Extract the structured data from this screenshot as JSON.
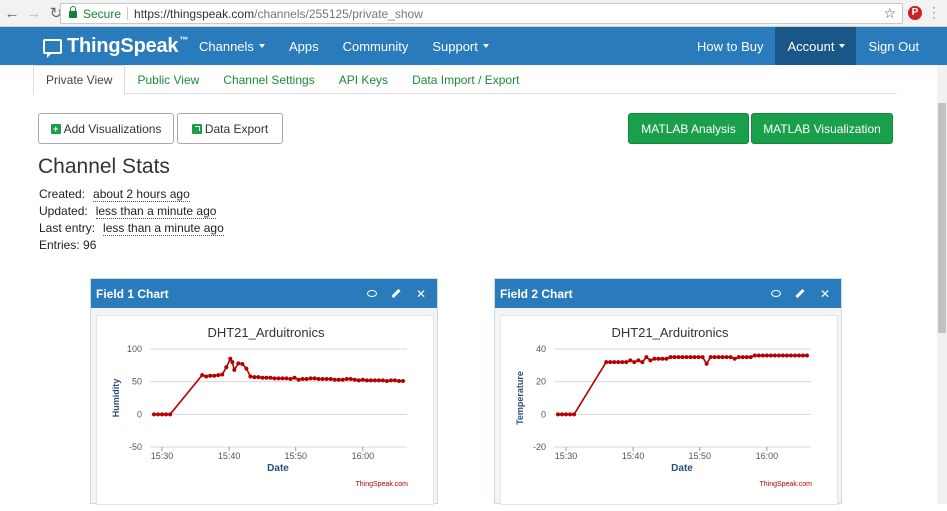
{
  "browser": {
    "secure_label": "Secure",
    "url_host": "https://thingspeak.com",
    "url_path": "/channels/255125/private_show"
  },
  "header": {
    "logo": "ThingSpeak",
    "tm": "™",
    "nav_left": [
      "Channels",
      "Apps",
      "Community",
      "Support"
    ],
    "how_to_buy": "How to Buy",
    "account": "Account",
    "sign_out": "Sign Out"
  },
  "tabs": [
    "Private View",
    "Public View",
    "Channel Settings",
    "API Keys",
    "Data Import / Export"
  ],
  "buttons": {
    "add_viz": "Add Visualizations",
    "data_export": "Data Export",
    "matlab_analysis": "MATLAB Analysis",
    "matlab_viz": "MATLAB Visualization"
  },
  "stats": {
    "title": "Channel Stats",
    "created_label": "Created:",
    "created": "about 2 hours ago",
    "updated_label": "Updated:",
    "updated": "less than a minute ago",
    "last_entry_label": "Last entry:",
    "last_entry": "less than a minute ago",
    "entries": "Entries: 96"
  },
  "colors": {
    "brand": "#2a7bbb",
    "accent": "#1aa04a",
    "series": "#b40000"
  },
  "chart_data": [
    {
      "type": "line",
      "panel_title": "Field 1 Chart",
      "title": "DHT21_Arduitronics",
      "xlabel": "Date",
      "ylabel": "Humidity",
      "credit": "ThingSpeak.com",
      "ylim": [
        -50,
        100
      ],
      "yticks": [
        -50,
        0,
        50,
        100
      ],
      "xlim": [
        15.47,
        16.11
      ],
      "xticks": [
        {
          "v": 15.5,
          "l": "15:30"
        },
        {
          "v": 15.667,
          "l": "15:40"
        },
        {
          "v": 15.833,
          "l": "15:50"
        },
        {
          "v": 16.0,
          "l": "16:00"
        }
      ],
      "x": [
        15.48,
        15.49,
        15.5,
        15.51,
        15.52,
        15.6,
        15.61,
        15.62,
        15.63,
        15.64,
        15.65,
        15.66,
        15.67,
        15.675,
        15.68,
        15.69,
        15.7,
        15.71,
        15.72,
        15.73,
        15.74,
        15.75,
        15.76,
        15.77,
        15.78,
        15.79,
        15.8,
        15.81,
        15.82,
        15.83,
        15.84,
        15.85,
        15.86,
        15.87,
        15.88,
        15.89,
        15.9,
        15.91,
        15.92,
        15.93,
        15.94,
        15.95,
        15.96,
        15.97,
        15.98,
        15.99,
        16.0,
        16.01,
        16.02,
        16.03,
        16.04,
        16.05,
        16.06,
        16.07,
        16.08,
        16.09,
        16.1
      ],
      "values": [
        0,
        0,
        0,
        0,
        0,
        60,
        58,
        59,
        59,
        60,
        61,
        72,
        85,
        80,
        68,
        78,
        77,
        70,
        58,
        57,
        57,
        56,
        56,
        56,
        55,
        55,
        55,
        55,
        54,
        56,
        53,
        54,
        54,
        55,
        55,
        54,
        54,
        54,
        54,
        53,
        53,
        53,
        54,
        54,
        53,
        52,
        53,
        52,
        52,
        52,
        52,
        52,
        51,
        52,
        52,
        51,
        51
      ]
    },
    {
      "type": "line",
      "panel_title": "Field 2 Chart",
      "title": "DHT21_Arduitronics",
      "xlabel": "Date",
      "ylabel": "Temperature",
      "credit": "ThingSpeak.com",
      "ylim": [
        -20,
        40
      ],
      "yticks": [
        -20,
        0,
        20,
        40
      ],
      "xlim": [
        15.47,
        16.11
      ],
      "xticks": [
        {
          "v": 15.5,
          "l": "15:30"
        },
        {
          "v": 15.667,
          "l": "15:40"
        },
        {
          "v": 15.833,
          "l": "15:50"
        },
        {
          "v": 16.0,
          "l": "16:00"
        }
      ],
      "x": [
        15.48,
        15.49,
        15.5,
        15.51,
        15.52,
        15.6,
        15.61,
        15.62,
        15.63,
        15.64,
        15.65,
        15.66,
        15.67,
        15.68,
        15.69,
        15.7,
        15.71,
        15.72,
        15.73,
        15.74,
        15.75,
        15.76,
        15.77,
        15.78,
        15.79,
        15.8,
        15.81,
        15.82,
        15.83,
        15.84,
        15.85,
        15.86,
        15.87,
        15.88,
        15.89,
        15.9,
        15.91,
        15.92,
        15.93,
        15.94,
        15.95,
        15.96,
        15.97,
        15.98,
        15.99,
        16.0,
        16.01,
        16.02,
        16.03,
        16.04,
        16.05,
        16.06,
        16.07,
        16.08,
        16.09,
        16.1
      ],
      "values": [
        0,
        0,
        0,
        0,
        0,
        32,
        32,
        32,
        32,
        32,
        32,
        33,
        32,
        33,
        32,
        35,
        33,
        34,
        34,
        34,
        34,
        35,
        35,
        35,
        35,
        35,
        35,
        35,
        35,
        35,
        31,
        35,
        35,
        35,
        35,
        35,
        35,
        34,
        35,
        35,
        35,
        35,
        36,
        36,
        36,
        36,
        36,
        36,
        36,
        36,
        36,
        36,
        36,
        36,
        36,
        36
      ]
    }
  ]
}
